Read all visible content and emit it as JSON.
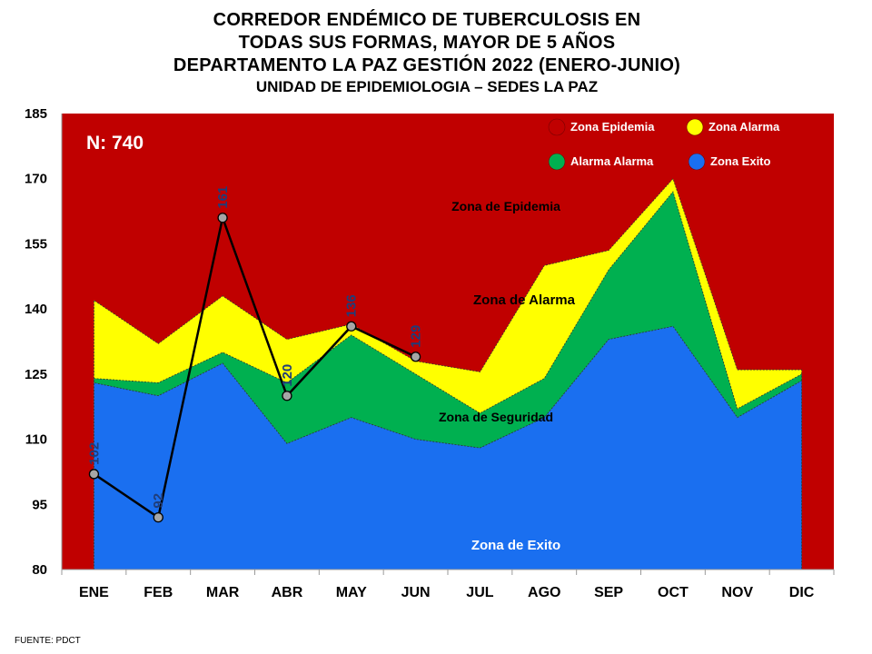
{
  "header": {
    "title_lines": [
      "CORREDOR ENDÉMICO DE TUBERCULOSIS EN",
      "TODAS SUS FORMAS, MAYOR DE 5 AÑOS",
      "DEPARTAMENTO  LA PAZ GESTIÓN 2022 (ENERO-JUNIO)"
    ],
    "subtitle": "UNIDAD DE EPIDEMIOLOGIA – SEDES LA PAZ"
  },
  "footer": {
    "source": "FUENTE:   PDCT"
  },
  "chart_data": {
    "type": "area",
    "categories": [
      "ENE",
      "FEB",
      "MAR",
      "ABR",
      "MAY",
      "JUN",
      "JUL",
      "AGO",
      "SEP",
      "OCT",
      "NOV",
      "DIC"
    ],
    "ylim": [
      80,
      185
    ],
    "yticks": [
      80,
      95,
      110,
      125,
      140,
      155,
      170,
      185
    ],
    "grid": false,
    "bands": [
      {
        "name": "Zona Exito",
        "color": "#1a6ff0",
        "upper": [
          123,
          120,
          127.5,
          109,
          115,
          110,
          108,
          115,
          133,
          136,
          115,
          123.5
        ]
      },
      {
        "name": "Alarma  Alarma",
        "color": "#00b050",
        "upper": [
          124,
          123,
          130,
          123,
          134,
          125,
          116,
          124,
          149,
          167,
          117,
          125
        ]
      },
      {
        "name": "Zona  Alarma",
        "color": "#ffff00",
        "upper": [
          142,
          132,
          143,
          133,
          136.5,
          128,
          125.5,
          150,
          153.5,
          170,
          126,
          126
        ]
      },
      {
        "name": "Zona Epidemia",
        "color": "#c00000",
        "upper": [
          185,
          185,
          185,
          185,
          185,
          185,
          185,
          185,
          185,
          185,
          185,
          185
        ]
      }
    ],
    "observed": {
      "categories": [
        "ENE",
        "FEB",
        "MAR",
        "ABR",
        "MAY",
        "JUN"
      ],
      "values": [
        102,
        92,
        161,
        120,
        136,
        129
      ],
      "labels": [
        "102",
        "92",
        "161",
        "120",
        "136",
        "129"
      ],
      "color": "#000000",
      "label_color": "#1f3d7a"
    },
    "legend": [
      {
        "label": "Zona Epidemia",
        "color": "#c00000"
      },
      {
        "label": "Zona  Alarma",
        "color": "#ffff00"
      },
      {
        "label": "Alarma  Alarma",
        "color": "#00b050"
      },
      {
        "label": "Zona Exito",
        "color": "#1a6ff0"
      }
    ],
    "legend_position": "top-right",
    "annotations": [
      {
        "text": "N: 740",
        "color": "#ffffff"
      },
      {
        "text": "Zona de Epidemia",
        "color": "#000000"
      },
      {
        "text": "Zona de Alarma",
        "color": "#000000"
      },
      {
        "text": "Zona de Seguridad",
        "color": "#000000"
      },
      {
        "text": "Zona de Exito",
        "color": "#ffffff"
      }
    ]
  }
}
